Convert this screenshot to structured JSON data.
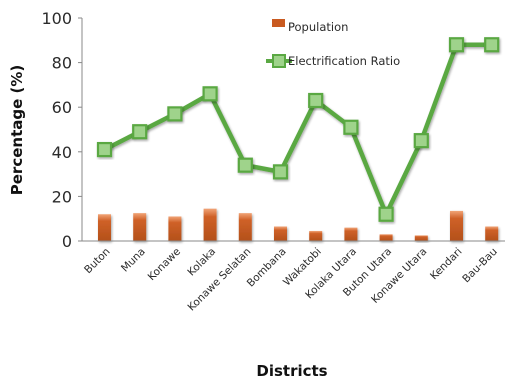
{
  "chart_data": {
    "type": "bar+line",
    "title": "",
    "xlabel": "Districts",
    "ylabel": "Percentage (%)",
    "ylim": [
      0,
      100
    ],
    "yticks": [
      0,
      20,
      40,
      60,
      80,
      100
    ],
    "grid": false,
    "legend_position": "top-right",
    "categories": [
      "Buton",
      "Muna",
      "Konawe",
      "Kolaka",
      "Konawe Selatan",
      "Bombana",
      "Wakatobi",
      "Kolaka Utara",
      "Buton Utara",
      "Konawe Utara",
      "Kendari",
      "Bau-Bau"
    ],
    "series": [
      {
        "name": "Population",
        "type": "bar",
        "color": "#c0561c",
        "values": [
          12,
          12.5,
          11,
          14.5,
          12.5,
          6.5,
          4.5,
          6,
          3,
          2.5,
          13.5,
          6.5
        ]
      },
      {
        "name": "Electrification Ratio",
        "type": "line",
        "color": "#5aa843",
        "values": [
          41,
          49,
          57,
          66,
          34,
          31,
          63,
          51,
          12,
          45,
          88,
          88
        ]
      }
    ]
  }
}
